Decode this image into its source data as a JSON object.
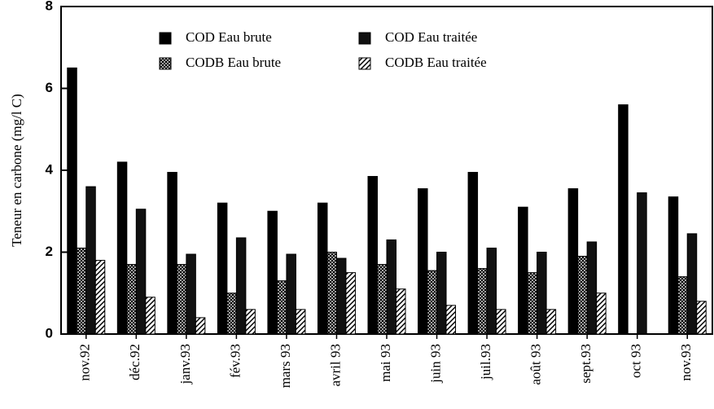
{
  "chart_data": {
    "type": "bar",
    "y_label": "Teneur en carbone (mg/l C)",
    "categories": [
      "nov.92",
      "déc.92",
      "janv.93",
      "fév.93",
      "mars 93",
      "avril 93",
      "mai 93",
      "juin 93",
      "juil.93",
      "août 93",
      "sept.93",
      "oct 93",
      "nov.93"
    ],
    "series": [
      {
        "name": "COD Eau brute",
        "color": "#000000",
        "pattern": "solid",
        "values": [
          6.5,
          4.2,
          3.95,
          3.2,
          3.0,
          3.2,
          3.85,
          3.55,
          3.95,
          3.1,
          3.55,
          5.6,
          3.35
        ]
      },
      {
        "name": "CODB Eau brute",
        "color": "#000000",
        "pattern": "crosshatch",
        "values": [
          2.1,
          1.7,
          1.7,
          1.0,
          1.3,
          2.0,
          1.7,
          1.55,
          1.6,
          1.5,
          1.9,
          null,
          1.4
        ]
      },
      {
        "name": "COD Eau traitée",
        "color": "#111111",
        "pattern": "solid",
        "values": [
          3.6,
          3.05,
          1.95,
          2.35,
          1.95,
          1.85,
          2.3,
          2.0,
          2.1,
          2.0,
          2.25,
          3.45,
          2.45
        ]
      },
      {
        "name": "CODB Eau traitée",
        "color": "#000000",
        "pattern": "diagonal",
        "values": [
          1.8,
          0.9,
          0.4,
          0.6,
          0.6,
          1.5,
          1.1,
          0.7,
          0.6,
          0.6,
          1.0,
          null,
          0.8
        ]
      }
    ],
    "ylim": [
      0,
      8
    ],
    "yticks": [
      0,
      2,
      4,
      6,
      8
    ],
    "legend": "top"
  }
}
